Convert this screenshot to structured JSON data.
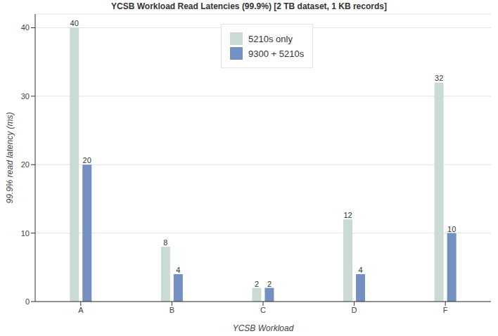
{
  "chart_data": {
    "type": "bar",
    "title": "YCSB Workload Read Latencies (99.9%) [2 TB dataset, 1 KB records]",
    "x_label": "YCSB Workload",
    "y_label": "99.9% read latency (ms)",
    "categories": [
      "A",
      "B",
      "C",
      "D",
      "F"
    ],
    "series": [
      {
        "name": "5210s only",
        "color": "#c9dbd3",
        "values": [
          40,
          8,
          2,
          12,
          32
        ]
      },
      {
        "name": "9300 + 5210s",
        "color": "#7390c0",
        "values": [
          20,
          4,
          2,
          4,
          10
        ]
      }
    ],
    "ylim": [
      0,
      42
    ],
    "yticks": [
      0,
      10,
      20,
      30,
      40
    ],
    "grid": true,
    "legend": "top",
    "data_labels": true
  }
}
